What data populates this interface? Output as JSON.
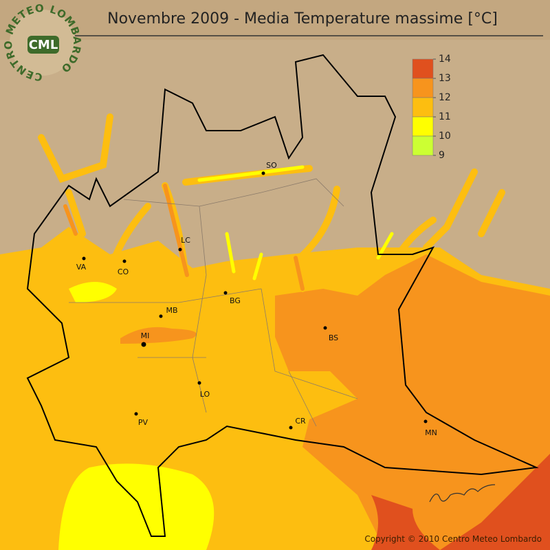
{
  "title": "Novembre 2009 - Media Temperature massime [°C]",
  "logo": {
    "ring": "CENTRO METEO LOMBARDO",
    "initials": "CML"
  },
  "legend": {
    "ticks": [
      14,
      13,
      12,
      11,
      10,
      9
    ],
    "colors": [
      "#e0501e",
      "#f7941d",
      "#fdbe10",
      "#ffff00",
      "#ccff33"
    ]
  },
  "cities": [
    {
      "label": "SO"
    },
    {
      "label": "LC"
    },
    {
      "label": "VA"
    },
    {
      "label": "CO"
    },
    {
      "label": "BG"
    },
    {
      "label": "MB"
    },
    {
      "label": "MI"
    },
    {
      "label": "BS"
    },
    {
      "label": "LO"
    },
    {
      "label": "PV"
    },
    {
      "label": "CR"
    },
    {
      "label": "MN"
    }
  ],
  "copyright": "Copyright © 2010 Centro Meteo Lombardo"
}
